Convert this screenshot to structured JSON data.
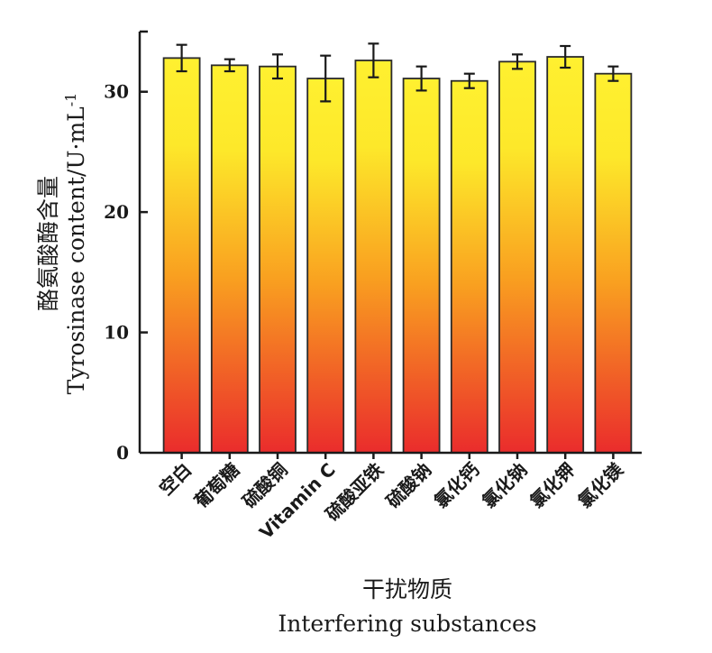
{
  "chart_data": {
    "type": "bar",
    "categories": [
      "空白",
      "葡萄糖",
      "硫酸铜",
      "Vitamin C",
      "硫酸亚铁",
      "硫酸钠",
      "氯化钙",
      "氯化钠",
      "氯化钾",
      "氯化镁"
    ],
    "values": [
      32.8,
      32.2,
      32.1,
      31.1,
      32.6,
      31.1,
      30.9,
      32.5,
      32.9,
      31.5
    ],
    "errors": [
      1.1,
      0.5,
      1.0,
      1.9,
      1.4,
      1.0,
      0.6,
      0.6,
      0.9,
      0.6
    ],
    "ylim": [
      0,
      35
    ],
    "yticks": [
      0,
      10,
      20,
      30
    ],
    "ylabel_cn": "酪氨酸酶含量",
    "ylabel_en": "Tyrosinase  content/U·mL",
    "ylabel_sup": "-1",
    "xlabel_cn": "干扰物质",
    "xlabel_en": "Interfering  substances",
    "bar_gradient": {
      "top": "#fff030",
      "mid": "#f9a020",
      "bottom": "#ea2c2c"
    },
    "grid": false,
    "legend": "none"
  }
}
